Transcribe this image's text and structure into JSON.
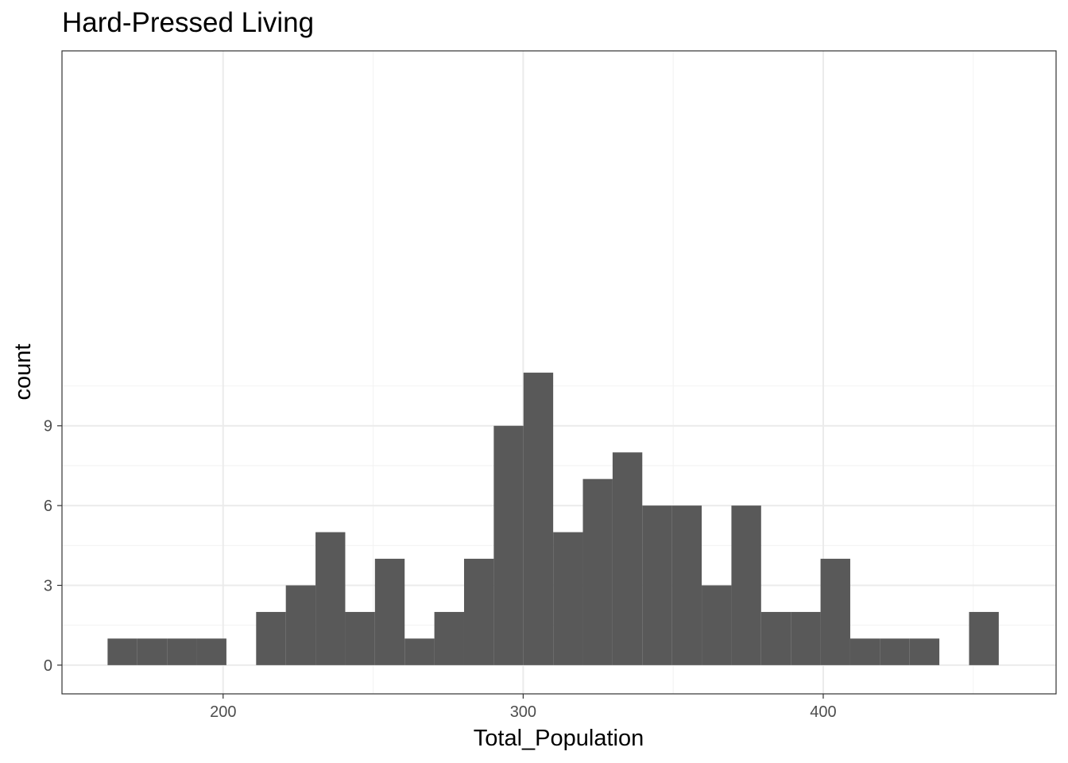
{
  "chart_data": {
    "type": "bar",
    "title": "Hard-Pressed Living",
    "xlabel": "Total_Population",
    "ylabel": "count",
    "xlim": [
      146.3,
      477.6
    ],
    "ylim": [
      -1.08,
      23.1
    ],
    "x_ticks": [
      200,
      300,
      400
    ],
    "y_ticks": [
      0,
      3,
      6,
      9
    ],
    "x_minor_ticks": [
      250,
      350,
      450
    ],
    "y_minor_ticks": [
      1.5,
      4.5,
      7.5,
      10.5
    ],
    "grid": true,
    "bar_color": "#595959",
    "bin_width": 9.9,
    "bins": [
      {
        "x_start": 161.5,
        "x_end": 171.4,
        "count": 1
      },
      {
        "x_start": 171.4,
        "x_end": 181.3,
        "count": 1
      },
      {
        "x_start": 181.3,
        "x_end": 191.2,
        "count": 1
      },
      {
        "x_start": 191.2,
        "x_end": 201.1,
        "count": 1
      },
      {
        "x_start": 201.1,
        "x_end": 211.0,
        "count": 0
      },
      {
        "x_start": 211.0,
        "x_end": 220.9,
        "count": 2
      },
      {
        "x_start": 220.9,
        "x_end": 230.8,
        "count": 3
      },
      {
        "x_start": 230.8,
        "x_end": 240.7,
        "count": 5
      },
      {
        "x_start": 240.7,
        "x_end": 250.6,
        "count": 2
      },
      {
        "x_start": 250.6,
        "x_end": 260.5,
        "count": 4
      },
      {
        "x_start": 260.5,
        "x_end": 270.4,
        "count": 1
      },
      {
        "x_start": 270.4,
        "x_end": 280.3,
        "count": 2
      },
      {
        "x_start": 280.3,
        "x_end": 290.2,
        "count": 4
      },
      {
        "x_start": 290.2,
        "x_end": 300.1,
        "count": 9
      },
      {
        "x_start": 300.1,
        "x_end": 310.0,
        "count": 11
      },
      {
        "x_start": 310.0,
        "x_end": 319.9,
        "count": 5
      },
      {
        "x_start": 319.9,
        "x_end": 329.8,
        "count": 7
      },
      {
        "x_start": 329.8,
        "x_end": 339.7,
        "count": 8
      },
      {
        "x_start": 339.7,
        "x_end": 349.6,
        "count": 6
      },
      {
        "x_start": 349.6,
        "x_end": 359.5,
        "count": 6
      },
      {
        "x_start": 359.5,
        "x_end": 369.4,
        "count": 3
      },
      {
        "x_start": 369.4,
        "x_end": 379.3,
        "count": 6
      },
      {
        "x_start": 379.3,
        "x_end": 389.2,
        "count": 2
      },
      {
        "x_start": 389.2,
        "x_end": 399.1,
        "count": 2
      },
      {
        "x_start": 399.1,
        "x_end": 409.0,
        "count": 4
      },
      {
        "x_start": 409.0,
        "x_end": 418.9,
        "count": 1
      },
      {
        "x_start": 418.9,
        "x_end": 428.8,
        "count": 1
      },
      {
        "x_start": 428.8,
        "x_end": 438.7,
        "count": 1
      },
      {
        "x_start": 438.7,
        "x_end": 448.6,
        "count": 0
      },
      {
        "x_start": 448.6,
        "x_end": 458.5,
        "count": 2
      }
    ]
  }
}
